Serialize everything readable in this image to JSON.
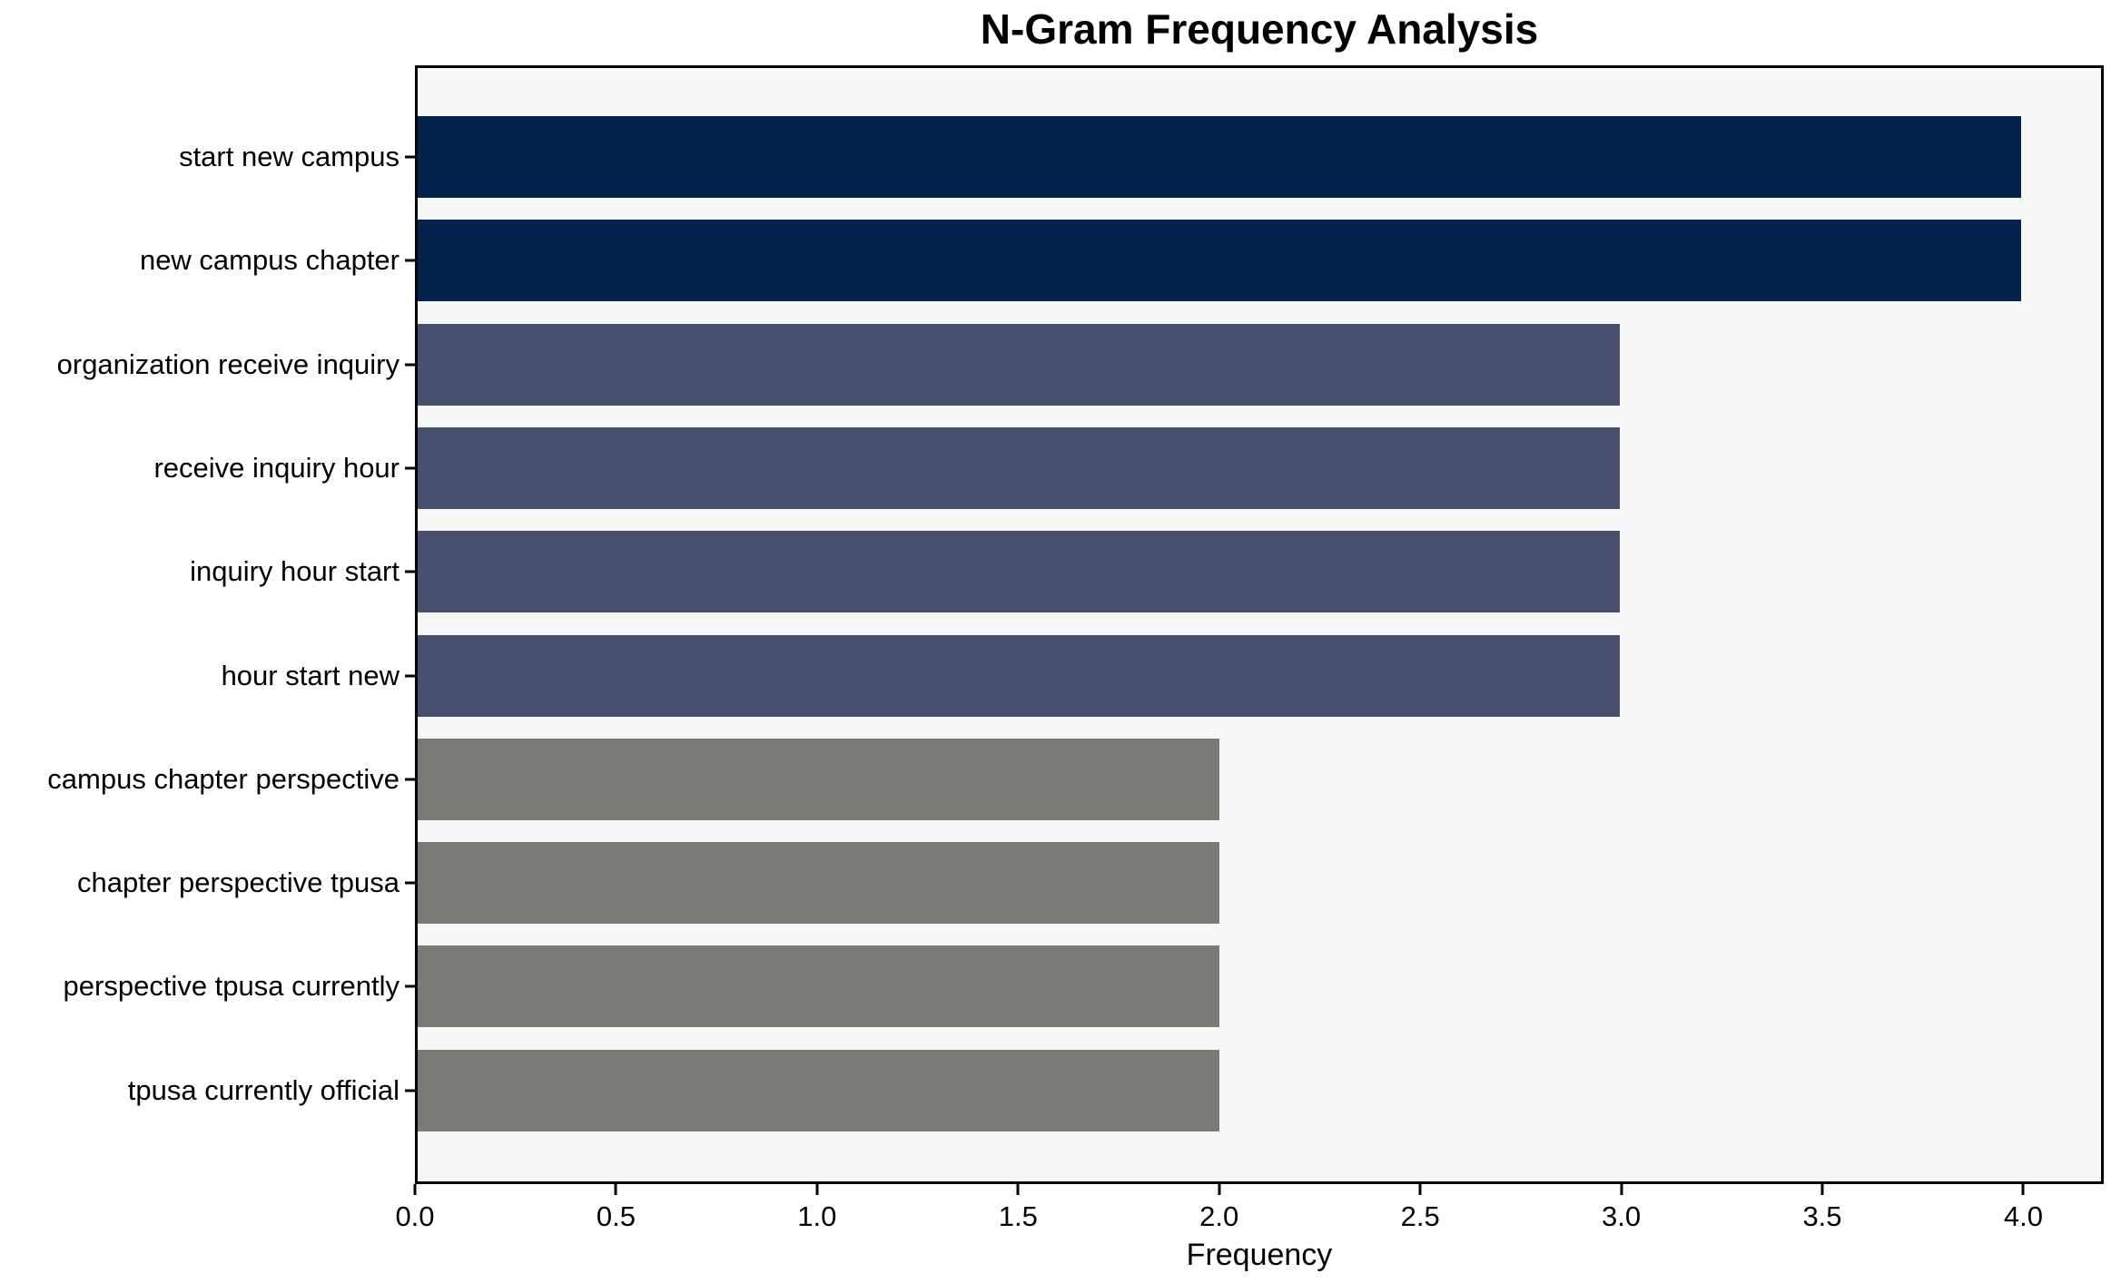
{
  "figure": {
    "background": "#ffffff",
    "plot_background": "#f7f7f8",
    "spine_color": "#000000",
    "text_color": "#000000"
  },
  "chart_data": {
    "type": "bar",
    "orientation": "horizontal",
    "title": "N-Gram Frequency Analysis",
    "xlabel": "Frequency",
    "ylabel": "",
    "categories": [
      "start new campus",
      "new campus chapter",
      "organization receive inquiry",
      "receive inquiry hour",
      "inquiry hour start",
      "hour start new",
      "campus chapter perspective",
      "chapter perspective tpusa",
      "perspective tpusa currently",
      "tpusa currently official"
    ],
    "values": [
      4,
      4,
      3,
      3,
      3,
      3,
      2,
      2,
      2,
      2
    ],
    "bar_colors": [
      "#03234d",
      "#03234d",
      "#46506e",
      "#46506e",
      "#46506e",
      "#46506e",
      "#7b7b76",
      "#7b7b76",
      "#7b7b76",
      "#7b7b76"
    ],
    "palette": {
      "frequency_4": "#03234d",
      "frequency_3": "#46506e",
      "frequency_2": "#7b7b76"
    },
    "xlim": [
      0,
      4.2
    ],
    "xticks": [
      0.0,
      0.5,
      1.0,
      1.5,
      2.0,
      2.5,
      3.0,
      3.5,
      4.0
    ],
    "xtick_labels": [
      "0.0",
      "0.5",
      "1.0",
      "1.5",
      "2.0",
      "2.5",
      "3.0",
      "3.5",
      "4.0"
    ],
    "grid": false,
    "legend": false
  }
}
